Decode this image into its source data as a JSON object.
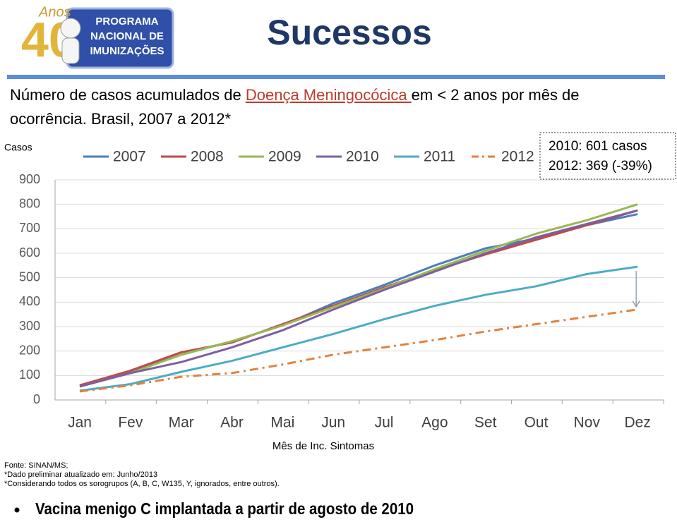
{
  "logo": {
    "anos": "Anos",
    "number": "40",
    "lines": [
      "PROGRAMA",
      "NACIONAL DE",
      "IMUNIZAÇÕES"
    ]
  },
  "title": "Sucessos",
  "subtitle": [
    "Número de casos acumulados de ",
    "Doença Meningocócica ",
    "em < 2 anos por mês de ocorrência. Brasil, 2007 a 2012*"
  ],
  "chart_data": {
    "type": "line",
    "y_label": "Casos",
    "x_label": "Mês de Inc. Sintomas",
    "categories": [
      "Jan",
      "Fev",
      "Mar",
      "Abr",
      "Mai",
      "Jun",
      "Jul",
      "Ago",
      "Set",
      "Out",
      "Nov",
      "Dez"
    ],
    "ylim": [
      0,
      900
    ],
    "yticks": [
      0,
      100,
      200,
      300,
      400,
      500,
      600,
      700,
      800,
      900
    ],
    "grid": true,
    "legend": "top",
    "series": [
      {
        "name": "2007",
        "color": "#4a7ebb",
        "values": [
          58,
          115,
          185,
          240,
          305,
          395,
          470,
          550,
          620,
          660,
          715,
          760
        ]
      },
      {
        "name": "2008",
        "color": "#be4b48",
        "values": [
          60,
          120,
          195,
          235,
          310,
          385,
          460,
          530,
          595,
          655,
          715,
          775
        ]
      },
      {
        "name": "2009",
        "color": "#98b954",
        "values": [
          55,
          110,
          185,
          240,
          305,
          380,
          455,
          535,
          610,
          680,
          735,
          800
        ]
      },
      {
        "name": "2010",
        "color": "#7d5fa0",
        "values": [
          55,
          110,
          155,
          215,
          285,
          370,
          450,
          525,
          600,
          665,
          720,
          775
        ]
      },
      {
        "name": "2011",
        "color": "#4bacc6",
        "values": [
          38,
          65,
          115,
          160,
          215,
          270,
          330,
          385,
          430,
          465,
          515,
          545
        ]
      },
      {
        "name": "2012",
        "color": "#e0823d",
        "dashed": true,
        "values": [
          35,
          60,
          95,
          110,
          145,
          185,
          215,
          245,
          280,
          310,
          340,
          370
        ]
      }
    ],
    "annotation": [
      "2010: 601 casos",
      "2012: 369 (-39%)"
    ]
  },
  "notes": [
    "Fonte: SINAN/MS;",
    "*Dado preliminar atualizado em: Junho/2013",
    "*Considerando todos os sorogrupos (A, B, C, W135, Y, ignorados, entre outros)."
  ],
  "bullet": "Vacina menigo C implantada a partir de agosto de 2010"
}
